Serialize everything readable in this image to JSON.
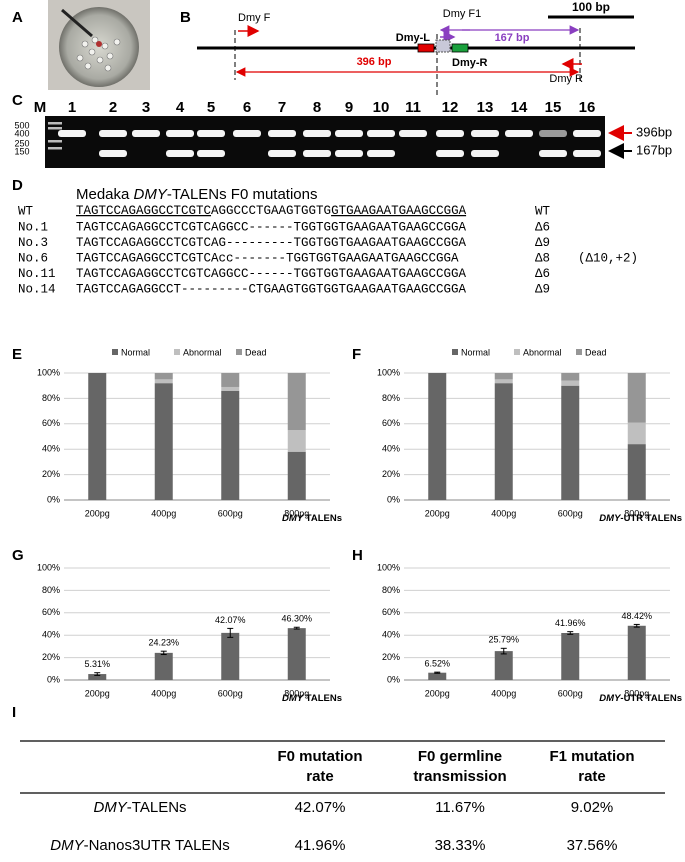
{
  "panel_labels": [
    "A",
    "B",
    "C",
    "D",
    "E",
    "F",
    "G",
    "H",
    "I"
  ],
  "diagram": {
    "scale_label": "100 bp",
    "primers": [
      "Dmy F",
      "Dmy F1",
      "Dmy R"
    ],
    "talens": [
      "Dmy-L",
      "Dmy-R"
    ],
    "products": [
      "167 bp",
      "396 bp"
    ]
  },
  "gel": {
    "lanes": [
      "M",
      "1",
      "2",
      "3",
      "4",
      "5",
      "6",
      "7",
      "8",
      "9",
      "10",
      "11",
      "12",
      "13",
      "14",
      "15",
      "16"
    ],
    "markers": [
      "500",
      "400",
      "250",
      "150"
    ],
    "bands": [
      "396bp",
      "167bp"
    ]
  },
  "sequences": {
    "title": [
      "Medaka ",
      "DMY",
      "-TALENs F0 mutations"
    ],
    "wt": {
      "name": "WT",
      "parts": [
        "TAGTCCAGAGGCCTCGTC",
        "AGGCCCTGAAGTGGTG",
        "GTGAAGAATGAAGCCGGA"
      ],
      "note": "WT"
    },
    "rows": [
      {
        "name": "No.1",
        "seq": "TAGTCCAGAGGCCTCGTCAGGCC------TGGTGGTGAAGAATGAAGCCGGA",
        "note": "Δ6"
      },
      {
        "name": "No.3",
        "seq": "TAGTCCAGAGGCCTCGTCAG---------TGGTGGTGAAGAATGAAGCCGGA",
        "note": "Δ9"
      },
      {
        "name": "No.6",
        "seq": "TAGTCCAGAGGCCTCGTCAcc-------TGGTGGTGAAGAATGAAGCCGGA",
        "note": "Δ8",
        "extra": "(Δ10,+2)"
      },
      {
        "name": "No.11",
        "seq": "TAGTCCAGAGGCCTCGTCAGGCC------TGGTGGTGAAGAATGAAGCCGGA",
        "note": "Δ6"
      },
      {
        "name": "No.14",
        "seq": "TAGTCCAGAGGCCT---------CTGAAGTGGTGGTGAAGAATGAAGCCGGA",
        "note": "Δ9"
      }
    ]
  },
  "chart_data": [
    {
      "type": "stacked_bar",
      "categories": [
        "200pg",
        "400pg",
        "600pg",
        "800pg"
      ],
      "series": [
        {
          "name": "Normal",
          "color": "#666666",
          "values": [
            100,
            92,
            86,
            38
          ]
        },
        {
          "name": "Abnormal",
          "color": "#bfbfbf",
          "values": [
            0,
            3,
            3,
            17
          ]
        },
        {
          "name": "Dead",
          "color": "#969696",
          "values": [
            0,
            5,
            11,
            45
          ]
        }
      ],
      "ylim": [
        0,
        100
      ],
      "yticks": [
        {
          "value": 0,
          "label": "0%"
        },
        {
          "value": 20,
          "label": "20%"
        },
        {
          "value": 40,
          "label": "40%"
        },
        {
          "value": 60,
          "label": "60%"
        },
        {
          "value": 80,
          "label": "80%"
        },
        {
          "value": 100,
          "label": "100%"
        }
      ],
      "x_label": [
        "DMY",
        " TALENs"
      ],
      "grid": true,
      "legend": "top"
    },
    {
      "type": "stacked_bar",
      "categories": [
        "200pg",
        "400pg",
        "600pg",
        "800pg"
      ],
      "series": [
        {
          "name": "Normal",
          "color": "#666666",
          "values": [
            100,
            92,
            90,
            44
          ]
        },
        {
          "name": "Abnormal",
          "color": "#bfbfbf",
          "values": [
            0,
            3,
            4,
            17
          ]
        },
        {
          "name": "Dead",
          "color": "#969696",
          "values": [
            0,
            5,
            6,
            39
          ]
        }
      ],
      "ylim": [
        0,
        100
      ],
      "yticks": [
        {
          "value": 0,
          "label": "0%"
        },
        {
          "value": 20,
          "label": "20%"
        },
        {
          "value": 40,
          "label": "40%"
        },
        {
          "value": 60,
          "label": "60%"
        },
        {
          "value": 80,
          "label": "80%"
        },
        {
          "value": 100,
          "label": "100%"
        }
      ],
      "x_label": [
        "DMY",
        "-UTR TALENs"
      ],
      "grid": true,
      "legend": "top"
    },
    {
      "type": "bar",
      "categories": [
        "200pg",
        "400pg",
        "600pg",
        "800pg"
      ],
      "values": [
        5.31,
        24.23,
        42.07,
        46.3
      ],
      "value_labels": [
        "5.31%",
        "24.23%",
        "42.07%",
        "46.30%"
      ],
      "errors": [
        1.2,
        1.5,
        4,
        0.8
      ],
      "color": "#666666",
      "ylim": [
        0,
        100
      ],
      "yticks": [
        {
          "value": 0,
          "label": "0%"
        },
        {
          "value": 20,
          "label": "20%"
        },
        {
          "value": 40,
          "label": "40%"
        },
        {
          "value": 60,
          "label": "60%"
        },
        {
          "value": 80,
          "label": "80%"
        },
        {
          "value": 100,
          "label": "100%"
        }
      ],
      "x_label": [
        "DMY",
        " TALENs"
      ],
      "grid": true
    },
    {
      "type": "bar",
      "categories": [
        "200pg",
        "400pg",
        "600pg",
        "800pg"
      ],
      "values": [
        6.52,
        25.79,
        41.96,
        48.42
      ],
      "value_labels": [
        "6.52%",
        "25.79%",
        "41.96%",
        "48.42%"
      ],
      "errors": [
        0.5,
        2.5,
        1.2,
        1.2
      ],
      "color": "#666666",
      "ylim": [
        0,
        100
      ],
      "yticks": [
        {
          "value": 0,
          "label": "0%"
        },
        {
          "value": 20,
          "label": "20%"
        },
        {
          "value": 40,
          "label": "40%"
        },
        {
          "value": 60,
          "label": "60%"
        },
        {
          "value": 80,
          "label": "80%"
        },
        {
          "value": 100,
          "label": "100%"
        }
      ],
      "x_label": [
        "DMY",
        "-UTR TALENs"
      ],
      "grid": true
    }
  ],
  "table": {
    "headers": [
      "F0 mutation rate",
      "F0 germline transmission",
      "F1 mutation rate"
    ],
    "rows": [
      {
        "label": [
          "DMY",
          "-TALENs"
        ],
        "cells": [
          "42.07%",
          "11.67%",
          "9.02%"
        ]
      },
      {
        "label": [
          "DMY",
          "-Nanos3UTR TALENs"
        ],
        "cells": [
          "41.96%",
          "38.33%",
          "37.56%"
        ]
      }
    ]
  }
}
